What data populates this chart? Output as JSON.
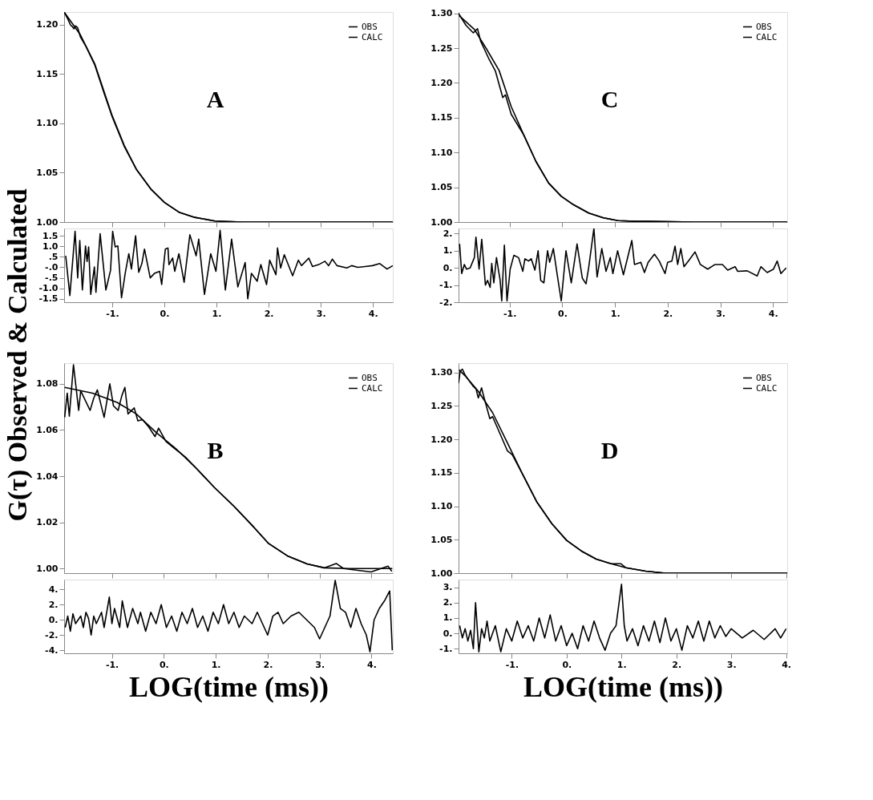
{
  "chart_data": [
    {
      "type": "line",
      "ylabel": "G(τ) Observed & Calculated",
      "annotations": [
        "A"
      ],
      "legend": "top right",
      "tick_labels": "y",
      "xlim": [
        -1.92,
        4.38
      ],
      "ylim": [
        1.0,
        1.213
      ],
      "xticks": [
        {
          "value": -1,
          "label": null
        },
        {
          "value": 0,
          "label": null
        },
        {
          "value": 1,
          "label": null
        },
        {
          "value": 2,
          "label": null
        },
        {
          "value": 3,
          "label": null
        },
        {
          "value": 4,
          "label": null
        }
      ],
      "yticks": [
        {
          "value": 1.0,
          "label": "1.00"
        },
        {
          "value": 1.05,
          "label": "1.05"
        },
        {
          "value": 1.1,
          "label": "1.10"
        },
        {
          "value": 1.15,
          "label": "1.15"
        },
        {
          "value": 1.2,
          "label": "1.20"
        }
      ],
      "series": [
        {
          "name": "OBS",
          "color": "#000000",
          "x": [
            -1.92,
            -1.85,
            -1.8,
            -1.76,
            -1.73,
            -1.7,
            -1.66,
            -1.61,
            -1.5,
            -1.33,
            -1.15,
            -1.0,
            -0.77,
            -0.53,
            -0.25,
            0,
            0.28,
            0.56,
            0.97,
            1.5,
            2.5,
            3.5,
            4.38
          ],
          "values": [
            1.213,
            1.206,
            1.2,
            1.198,
            1.196,
            1.199,
            1.197,
            1.188,
            1.178,
            1.159,
            1.13,
            1.107,
            1.077,
            1.053,
            1.033,
            1.02,
            1.01,
            1.005,
            1.001,
            1.0,
            1.0,
            1.0,
            1.0
          ]
        },
        {
          "name": "CALC",
          "color": "#000000",
          "x": [
            -1.92,
            -1.61,
            -1.33,
            -1.0,
            -0.77,
            -0.53,
            -0.25,
            0,
            0.28,
            0.56,
            0.97,
            1.5,
            2.5,
            3.5,
            4.38
          ],
          "values": [
            1.213,
            1.19,
            1.16,
            1.108,
            1.078,
            1.053,
            1.033,
            1.02,
            1.01,
            1.005,
            1.001,
            1.0,
            1.0,
            1.0,
            1.0
          ]
        }
      ]
    },
    {
      "type": "line",
      "xlim": [
        -1.92,
        4.38
      ],
      "ylim": [
        -1.66,
        1.85
      ],
      "xticks": [
        {
          "value": -1,
          "label": "-1."
        },
        {
          "value": 0,
          "label": "0."
        },
        {
          "value": 1,
          "label": "1."
        },
        {
          "value": 2,
          "label": "2."
        },
        {
          "value": 3,
          "label": "3."
        },
        {
          "value": 4,
          "label": "4."
        }
      ],
      "yticks": [
        {
          "value": 1.5,
          "label": "1.5"
        },
        {
          "value": 1.0,
          "label": "1.0"
        },
        {
          "value": 0.5,
          "label": ".5"
        },
        {
          "value": 0,
          "label": "-.0"
        },
        {
          "value": -0.5,
          "label": "-.5"
        },
        {
          "value": -1.0,
          "label": "-1.0"
        },
        {
          "value": -1.5,
          "label": "-1.5"
        }
      ],
      "series": [
        {
          "color": "#000000",
          "x": [
            -1.89,
            -1.81,
            -1.71,
            -1.66,
            -1.62,
            -1.57,
            -1.51,
            -1.48,
            -1.45,
            -1.41,
            -1.34,
            -1.31,
            -1.23,
            -1.12,
            -1.03,
            -0.99,
            -0.94,
            -0.89,
            -0.82,
            -0.75,
            -0.68,
            -0.63,
            -0.55,
            -0.49,
            -0.43,
            -0.38,
            -0.27,
            -0.19,
            -0.09,
            -0.05,
            0.02,
            0.07,
            0.09,
            0.16,
            0.2,
            0.28,
            0.38,
            0.49,
            0.61,
            0.66,
            0.77,
            0.89,
            0.99,
            1.07,
            1.17,
            1.29,
            1.41,
            1.55,
            1.6,
            1.67,
            1.78,
            1.85,
            1.96,
            2.02,
            2.14,
            2.17,
            2.23,
            2.3,
            2.46,
            2.57,
            2.63,
            2.77,
            2.84,
            2.96,
            3.08,
            3.15,
            3.22,
            3.31,
            3.5,
            3.59,
            3.71,
            3.85,
            3.99,
            4.13,
            4.27,
            4.38
          ],
          "values": [
            0.55,
            -1.34,
            1.71,
            -0.5,
            1.28,
            -1.08,
            1.02,
            0.28,
            0.97,
            -1.29,
            0.02,
            -1.19,
            1.6,
            -1.08,
            -0.14,
            1.71,
            0.97,
            1.02,
            -1.45,
            -0.29,
            0.65,
            -0.08,
            1.5,
            -0.24,
            0.18,
            0.87,
            -0.5,
            -0.29,
            -0.19,
            -0.82,
            0.87,
            0.92,
            0.13,
            0.44,
            -0.19,
            0.65,
            -0.71,
            1.55,
            0.55,
            1.34,
            -1.29,
            0.65,
            -0.19,
            1.76,
            -1.08,
            1.34,
            -0.93,
            0.23,
            -1.5,
            -0.29,
            -0.66,
            0.13,
            -0.82,
            0.34,
            -0.35,
            0.92,
            -0.03,
            0.6,
            -0.4,
            0.34,
            0.08,
            0.44,
            0.04,
            0.13,
            0.29,
            0.08,
            0.39,
            0.08,
            -0.03,
            0.08,
            0.0,
            0.04,
            0.08,
            0.18,
            -0.08,
            0.08
          ]
        }
      ]
    },
    {
      "type": "line",
      "annotations": [
        "C"
      ],
      "legend": "top right",
      "tick_labels": "y",
      "xlim": [
        -1.97,
        4.27
      ],
      "ylim": [
        1.0,
        1.302
      ],
      "xticks": [
        {
          "value": -1,
          "label": null
        },
        {
          "value": 0,
          "label": null
        },
        {
          "value": 1,
          "label": null
        },
        {
          "value": 2,
          "label": null
        },
        {
          "value": 3,
          "label": null
        },
        {
          "value": 4,
          "label": null
        }
      ],
      "yticks": [
        {
          "value": 1.0,
          "label": "1.00"
        },
        {
          "value": 1.05,
          "label": "1.05"
        },
        {
          "value": 1.1,
          "label": "1.10"
        },
        {
          "value": 1.15,
          "label": "1.15"
        },
        {
          "value": 1.2,
          "label": "1.20"
        },
        {
          "value": 1.25,
          "label": "1.25"
        },
        {
          "value": 1.3,
          "label": "1.30"
        }
      ],
      "series": [
        {
          "name": "OBS",
          "color": "#000000",
          "x": [
            -1.97,
            -1.83,
            -1.69,
            -1.61,
            -1.55,
            -1.39,
            -1.27,
            -1.13,
            -1.08,
            -0.97,
            -0.73,
            -0.5,
            -0.26,
            -0.02,
            0.21,
            0.5,
            0.78,
            1.06,
            1.39,
            1.63,
            2.5,
            3.5,
            4.27
          ],
          "values": [
            1.3,
            1.283,
            1.272,
            1.278,
            1.26,
            1.234,
            1.217,
            1.179,
            1.183,
            1.155,
            1.125,
            1.087,
            1.056,
            1.037,
            1.025,
            1.013,
            1.006,
            1.002,
            1.001,
            1.001,
            1.0,
            1.0,
            1.0
          ]
        },
        {
          "name": "CALC",
          "color": "#000000",
          "x": [
            -1.96,
            -1.67,
            -1.44,
            -1.2,
            -0.97,
            -0.73,
            -0.5,
            -0.26,
            -0.02,
            0.21,
            0.5,
            0.78,
            1.06,
            1.39,
            1.63,
            2.5,
            3.5,
            4.27
          ],
          "values": [
            1.297,
            1.277,
            1.249,
            1.218,
            1.166,
            1.125,
            1.087,
            1.056,
            1.037,
            1.025,
            1.013,
            1.006,
            1.002,
            1.001,
            1.001,
            1.0,
            1.0,
            1.0
          ]
        }
      ]
    },
    {
      "type": "line",
      "xlim": [
        -1.97,
        4.27
      ],
      "ylim": [
        -2.0,
        2.3
      ],
      "xticks": [
        {
          "value": -1,
          "label": "-1."
        },
        {
          "value": 0,
          "label": "0."
        },
        {
          "value": 1,
          "label": "1."
        },
        {
          "value": 2,
          "label": "2."
        },
        {
          "value": 3,
          "label": "3."
        },
        {
          "value": 4,
          "label": "4."
        }
      ],
      "yticks": [
        {
          "value": 2,
          "label": "2."
        },
        {
          "value": 1,
          "label": "1."
        },
        {
          "value": 0,
          "label": "0."
        },
        {
          "value": -1,
          "label": "-1."
        },
        {
          "value": -2,
          "label": "-2."
        }
      ],
      "series": [
        {
          "color": "#000000",
          "x": [
            -1.95,
            -1.91,
            -1.86,
            -1.82,
            -1.75,
            -1.67,
            -1.64,
            -1.58,
            -1.53,
            -1.46,
            -1.42,
            -1.37,
            -1.34,
            -1.3,
            -1.25,
            -1.18,
            -1.15,
            -1.1,
            -1.05,
            -0.99,
            -0.92,
            -0.83,
            -0.75,
            -0.71,
            -0.64,
            -0.59,
            -0.52,
            -0.46,
            -0.41,
            -0.35,
            -0.28,
            -0.24,
            -0.17,
            -0.09,
            -0.02,
            0.07,
            0.17,
            0.28,
            0.38,
            0.45,
            0.5,
            0.6,
            0.66,
            0.75,
            0.83,
            0.91,
            0.96,
            1.05,
            1.16,
            1.32,
            1.37,
            1.49,
            1.56,
            1.63,
            1.75,
            1.84,
            1.95,
            2.0,
            2.08,
            2.14,
            2.19,
            2.25,
            2.31,
            2.41,
            2.52,
            2.62,
            2.76,
            2.9,
            3.04,
            3.14,
            3.28,
            3.33,
            3.51,
            3.7,
            3.77,
            3.89,
            4.01,
            4.08,
            4.15,
            4.25
          ],
          "values": [
            1.4,
            -0.33,
            0.2,
            -0.07,
            0.0,
            0.6,
            1.8,
            -0.07,
            1.67,
            -1.0,
            -0.73,
            -1.13,
            0.27,
            -0.87,
            0.6,
            -0.73,
            -1.93,
            1.33,
            -1.93,
            -0.07,
            0.73,
            0.6,
            -0.2,
            0.53,
            0.4,
            0.53,
            -0.13,
            1.0,
            -0.73,
            -0.87,
            1.0,
            0.33,
            1.13,
            -0.53,
            -1.93,
            1.0,
            -0.87,
            1.4,
            -0.6,
            -0.93,
            0.0,
            2.3,
            -0.53,
            1.13,
            -0.2,
            0.6,
            -0.33,
            1.0,
            -0.4,
            1.6,
            0.2,
            0.33,
            -0.27,
            0.33,
            0.8,
            0.4,
            -0.33,
            0.33,
            0.4,
            1.27,
            0.2,
            1.13,
            0.07,
            0.47,
            0.93,
            0.2,
            -0.07,
            0.2,
            0.2,
            -0.13,
            0.07,
            -0.2,
            -0.17,
            -0.47,
            0.07,
            -0.27,
            -0.07,
            0.4,
            -0.33,
            0.0
          ]
        }
      ]
    },
    {
      "type": "line",
      "annotations": [
        "B"
      ],
      "legend": "top right",
      "tick_labels": "y",
      "xlim": [
        -1.92,
        4.41
      ],
      "ylim": [
        0.998,
        1.089
      ],
      "xticks": [
        {
          "value": -1,
          "label": null
        },
        {
          "value": 0,
          "label": null
        },
        {
          "value": 1,
          "label": null
        },
        {
          "value": 2,
          "label": null
        },
        {
          "value": 3,
          "label": null
        },
        {
          "value": 4,
          "label": null
        }
      ],
      "yticks": [
        {
          "value": 1.0,
          "label": "1.00"
        },
        {
          "value": 1.02,
          "label": "1.02"
        },
        {
          "value": 1.04,
          "label": "1.04"
        },
        {
          "value": 1.06,
          "label": "1.06"
        },
        {
          "value": 1.08,
          "label": "1.08"
        }
      ],
      "series": [
        {
          "name": "OBS",
          "color": "#000000",
          "x": [
            -1.91,
            -1.86,
            -1.82,
            -1.74,
            -1.64,
            -1.6,
            -1.42,
            -1.35,
            -1.28,
            -1.15,
            -1.04,
            -0.97,
            -0.88,
            -0.81,
            -0.75,
            -0.69,
            -0.57,
            -0.5,
            -0.41,
            -0.29,
            -0.17,
            -0.1,
            0.04,
            0.18,
            0.41,
            0.6,
            0.98,
            1.35,
            1.73,
            2.01,
            2.38,
            2.76,
            3.09,
            3.32,
            3.46,
            3.99,
            4.32,
            4.39
          ],
          "values": [
            1.0655,
            1.076,
            1.066,
            1.0883,
            1.0685,
            1.077,
            1.0685,
            1.0738,
            1.0774,
            1.0655,
            1.08,
            1.0705,
            1.0685,
            1.0748,
            1.0785,
            1.067,
            1.0696,
            1.064,
            1.0645,
            1.0613,
            1.0572,
            1.0608,
            1.0551,
            1.0525,
            1.0484,
            1.044,
            1.035,
            1.027,
            1.018,
            1.011,
            1.0055,
            1.002,
            1.0003,
            1.0022,
            1.0,
            0.9985,
            1.001,
            0.9988
          ]
        },
        {
          "name": "CALC",
          "color": "#000000",
          "x": [
            -1.91,
            -1.37,
            -0.9,
            -0.53,
            -0.15,
            0.23,
            0.6,
            0.98,
            1.35,
            1.73,
            2.01,
            2.38,
            2.76,
            3.09,
            3.56,
            4.4
          ],
          "values": [
            1.0785,
            1.076,
            1.072,
            1.067,
            1.059,
            1.052,
            1.044,
            1.035,
            1.027,
            1.018,
            1.011,
            1.0055,
            1.002,
            1.0003,
            1.0,
            1.0
          ]
        }
      ]
    },
    {
      "type": "line",
      "xlabel": "LOG(time (ms))",
      "xlim": [
        -1.92,
        4.41
      ],
      "ylim": [
        -4.4,
        5.3
      ],
      "xticks": [
        {
          "value": -1,
          "label": "-1."
        },
        {
          "value": 0,
          "label": "0."
        },
        {
          "value": 1,
          "label": "1."
        },
        {
          "value": 2,
          "label": "2."
        },
        {
          "value": 3,
          "label": "3."
        },
        {
          "value": 4,
          "label": "4."
        }
      ],
      "yticks": [
        {
          "value": 4,
          "label": "4."
        },
        {
          "value": 2,
          "label": "2."
        },
        {
          "value": 0,
          "label": "0."
        },
        {
          "value": -2,
          "label": "-2."
        },
        {
          "value": -4,
          "label": "-4."
        }
      ],
      "series": [
        {
          "color": "#000000",
          "x": [
            -1.9,
            -1.85,
            -1.8,
            -1.75,
            -1.7,
            -1.6,
            -1.55,
            -1.5,
            -1.45,
            -1.4,
            -1.35,
            -1.3,
            -1.2,
            -1.15,
            -1.05,
            -1.0,
            -0.95,
            -0.85,
            -0.8,
            -0.7,
            -0.6,
            -0.5,
            -0.45,
            -0.35,
            -0.25,
            -0.15,
            -0.05,
            0.05,
            0.15,
            0.25,
            0.35,
            0.45,
            0.55,
            0.65,
            0.75,
            0.85,
            0.95,
            1.05,
            1.15,
            1.25,
            1.35,
            1.45,
            1.55,
            1.7,
            1.8,
            1.9,
            2.0,
            2.1,
            2.2,
            2.3,
            2.45,
            2.6,
            2.75,
            2.9,
            3.0,
            3.1,
            3.2,
            3.3,
            3.4,
            3.5,
            3.6,
            3.7,
            3.8,
            3.9,
            3.97,
            4.05,
            4.15,
            4.25,
            4.35,
            4.4
          ],
          "values": [
            -1.0,
            0.5,
            -1.5,
            0.8,
            -0.5,
            0.5,
            -1.0,
            1.0,
            0.2,
            -2.0,
            0.5,
            -0.5,
            1.0,
            -1.0,
            3.0,
            -0.5,
            1.5,
            -1.0,
            2.5,
            -1.0,
            1.5,
            -0.5,
            1.0,
            -1.5,
            1.0,
            -0.5,
            2.0,
            -1.0,
            0.5,
            -1.5,
            1.0,
            -0.5,
            1.5,
            -1.0,
            0.5,
            -1.5,
            1.0,
            -0.5,
            2.0,
            -0.5,
            1.0,
            -1.0,
            0.5,
            -0.5,
            1.0,
            -0.5,
            -2.0,
            0.5,
            1.0,
            -0.5,
            0.5,
            1.0,
            0.0,
            -1.0,
            -2.5,
            -1.0,
            0.5,
            5.2,
            1.5,
            1.0,
            -1.0,
            1.5,
            -0.5,
            -2.0,
            -4.2,
            0.0,
            1.5,
            2.5,
            3.8,
            -4.0
          ]
        }
      ]
    },
    {
      "type": "line",
      "annotations": [
        "D"
      ],
      "legend": "top right",
      "tick_labels": "y",
      "xlim": [
        -1.97,
        4.02
      ],
      "ylim": [
        1.0,
        1.314
      ],
      "xticks": [
        {
          "value": -1,
          "label": null
        },
        {
          "value": 0,
          "label": null
        },
        {
          "value": 1,
          "label": null
        },
        {
          "value": 2,
          "label": null
        },
        {
          "value": 3,
          "label": null
        },
        {
          "value": 4,
          "label": null
        }
      ],
      "yticks": [
        {
          "value": 1.0,
          "label": "1.00"
        },
        {
          "value": 1.05,
          "label": "1.05"
        },
        {
          "value": 1.1,
          "label": "1.10"
        },
        {
          "value": 1.15,
          "label": "1.15"
        },
        {
          "value": 1.2,
          "label": "1.20"
        },
        {
          "value": 1.25,
          "label": "1.25"
        },
        {
          "value": 1.3,
          "label": "1.30"
        }
      ],
      "series": [
        {
          "name": "OBS",
          "color": "#000000",
          "x": [
            -1.97,
            -1.94,
            -1.9,
            -1.85,
            -1.71,
            -1.65,
            -1.61,
            -1.55,
            -1.51,
            -1.4,
            -1.35,
            -1.08,
            -0.99,
            -0.81,
            -0.54,
            -0.27,
            0,
            0.27,
            0.54,
            0.81,
            0.99,
            1.08,
            1.44,
            1.8,
            3.0,
            4.02
          ],
          "values": [
            1.284,
            1.302,
            1.305,
            1.296,
            1.28,
            1.275,
            1.262,
            1.277,
            1.264,
            1.231,
            1.234,
            1.183,
            1.177,
            1.149,
            1.106,
            1.074,
            1.049,
            1.033,
            1.021,
            1.014,
            1.014,
            1.008,
            1.003,
            1.0,
            1.0,
            1.0
          ]
        },
        {
          "name": "CALC",
          "color": "#000000",
          "x": [
            -1.96,
            -1.85,
            -1.62,
            -1.35,
            -1.08,
            -0.81,
            -0.54,
            -0.27,
            0,
            0.27,
            0.54,
            0.81,
            1.08,
            1.44,
            1.8,
            3.0,
            4.02
          ],
          "values": [
            1.304,
            1.295,
            1.273,
            1.24,
            1.195,
            1.149,
            1.106,
            1.074,
            1.049,
            1.033,
            1.021,
            1.014,
            1.008,
            1.003,
            1.0,
            1.0,
            1.0
          ]
        }
      ]
    },
    {
      "type": "line",
      "xlabel": "LOG(time (ms))",
      "xlim": [
        -1.97,
        4.02
      ],
      "ylim": [
        -1.3,
        3.5
      ],
      "xticks": [
        {
          "value": -1,
          "label": "-1."
        },
        {
          "value": 0,
          "label": "0."
        },
        {
          "value": 1,
          "label": "1."
        },
        {
          "value": 2,
          "label": "2."
        },
        {
          "value": 3,
          "label": "3."
        },
        {
          "value": 4,
          "label": "4."
        }
      ],
      "yticks": [
        {
          "value": 3,
          "label": "3."
        },
        {
          "value": 2,
          "label": "2."
        },
        {
          "value": 1,
          "label": "1."
        },
        {
          "value": 0,
          "label": "0."
        },
        {
          "value": -1,
          "label": "-1."
        }
      ],
      "series": [
        {
          "color": "#000000",
          "x": [
            -1.95,
            -1.9,
            -1.85,
            -1.8,
            -1.75,
            -1.7,
            -1.66,
            -1.6,
            -1.55,
            -1.5,
            -1.45,
            -1.4,
            -1.3,
            -1.2,
            -1.1,
            -1.0,
            -0.9,
            -0.8,
            -0.7,
            -0.6,
            -0.5,
            -0.4,
            -0.3,
            -0.2,
            -0.1,
            0.0,
            0.1,
            0.2,
            0.3,
            0.4,
            0.5,
            0.6,
            0.7,
            0.8,
            0.9,
            1.0,
            1.05,
            1.1,
            1.2,
            1.3,
            1.4,
            1.5,
            1.6,
            1.7,
            1.8,
            1.9,
            2.0,
            2.1,
            2.2,
            2.3,
            2.4,
            2.5,
            2.6,
            2.7,
            2.8,
            2.9,
            3.0,
            3.2,
            3.4,
            3.6,
            3.8,
            3.9,
            4.0
          ],
          "values": [
            0.5,
            -0.3,
            0.3,
            -0.5,
            0.2,
            -1.0,
            2.0,
            -1.2,
            0.3,
            -0.3,
            0.8,
            -0.5,
            0.5,
            -1.2,
            0.3,
            -0.5,
            0.8,
            -0.3,
            0.5,
            -0.5,
            1.0,
            -0.3,
            1.2,
            -0.5,
            0.5,
            -0.8,
            0.0,
            -1.0,
            0.5,
            -0.5,
            0.8,
            -0.3,
            -1.1,
            0.0,
            0.5,
            3.2,
            0.5,
            -0.5,
            0.3,
            -0.8,
            0.5,
            -0.5,
            0.8,
            -0.6,
            1.0,
            -0.5,
            0.3,
            -1.1,
            0.5,
            -0.3,
            0.8,
            -0.5,
            0.8,
            -0.3,
            0.5,
            -0.2,
            0.3,
            -0.3,
            0.2,
            -0.4,
            0.3,
            -0.3,
            0.3
          ]
        }
      ]
    }
  ]
}
